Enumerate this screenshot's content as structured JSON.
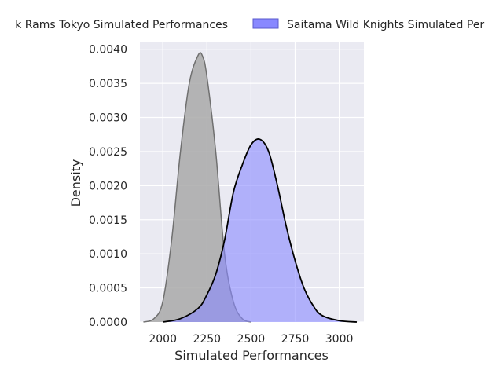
{
  "chart_data": {
    "type": "area",
    "title": "",
    "xlabel": "Simulated Performances",
    "ylabel": "Density",
    "xlim": [
      1870,
      3140
    ],
    "ylim": [
      0,
      0.0041
    ],
    "xticks": [
      "2000",
      "2250",
      "2500",
      "2750",
      "3000"
    ],
    "xtick_values": [
      2000,
      2250,
      2500,
      2750,
      3000
    ],
    "yticks": [
      "0.0000",
      "0.0005",
      "0.0010",
      "0.0015",
      "0.0020",
      "0.0025",
      "0.0030",
      "0.0035",
      "0.0040"
    ],
    "ytick_values": [
      0,
      0.0005,
      0.001,
      0.0015,
      0.002,
      0.0025,
      0.003,
      0.0035,
      0.004
    ],
    "grid": true,
    "legend_position": "top",
    "series": [
      {
        "name": "Black Rams Tokyo Simulated Performances",
        "legend_text": "k Rams Tokyo Simulated Performances",
        "color": "#a9a9a9",
        "edge_color": "#707070",
        "x": [
          1890,
          1950,
          2000,
          2050,
          2100,
          2150,
          2200,
          2225,
          2250,
          2300,
          2350,
          2400,
          2450,
          2500
        ],
        "y": [
          0.0,
          5e-05,
          0.0003,
          0.0012,
          0.0025,
          0.0035,
          0.00391,
          0.0039,
          0.0036,
          0.0025,
          0.001,
          0.0003,
          5e-05,
          0.0
        ]
      },
      {
        "name": "Saitama Wild Knights Simulated Performances",
        "legend_text": "Saitama Wild Knights Simulated Per",
        "color": "#8888ff",
        "edge_color": "#000000",
        "x": [
          2000,
          2100,
          2200,
          2250,
          2300,
          2350,
          2400,
          2450,
          2500,
          2550,
          2600,
          2650,
          2700,
          2750,
          2800,
          2850,
          2900,
          3000,
          3100
        ],
        "y": [
          0.0,
          5e-05,
          0.0002,
          0.0004,
          0.0007,
          0.0012,
          0.0019,
          0.0023,
          0.0026,
          0.00268,
          0.0025,
          0.002,
          0.0014,
          0.0009,
          0.0005,
          0.00025,
          0.0001,
          2e-05,
          0.0
        ]
      }
    ]
  }
}
